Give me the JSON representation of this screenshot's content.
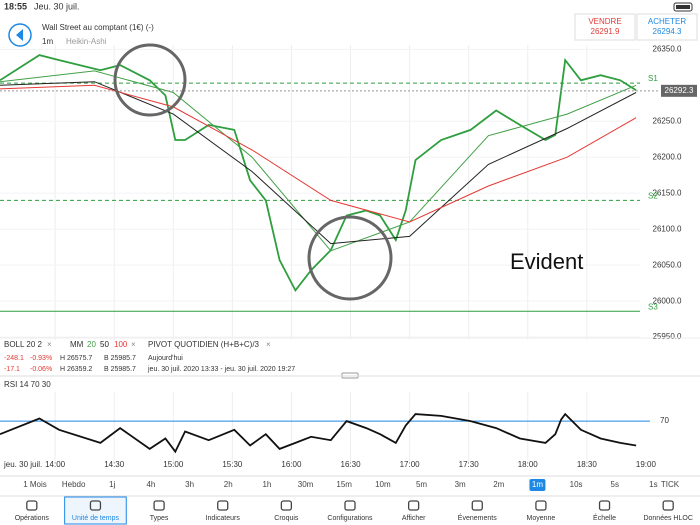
{
  "status": {
    "time": "18:55",
    "date": "Jeu. 30 juil."
  },
  "header": {
    "instrument": "Wall Street au comptant (1€) (-)",
    "timeframe": "1m",
    "chart_style": "Heikin-Ashi"
  },
  "quotes": {
    "sell_label": "VENDRE",
    "sell_price": 26291.9,
    "buy_label": "ACHETER",
    "buy_price": 26294.3
  },
  "chart_data": [
    {
      "type": "line",
      "annotation": "Evident",
      "current_price": 26292.3,
      "xlim": [
        812,
        1137
      ],
      "ylim": [
        25946,
        26356
      ],
      "yticks": [
        {
          "value": 25950,
          "label": "25950.0"
        },
        {
          "value": 26000,
          "label": "26000.0"
        },
        {
          "value": 26050,
          "label": "26050.0"
        },
        {
          "value": 26100,
          "label": "26100.0"
        },
        {
          "value": 26150,
          "label": "26150.0"
        },
        {
          "value": 26200,
          "label": "26200.0"
        },
        {
          "value": 26250,
          "label": "26250.0"
        },
        {
          "value": 26350,
          "label": "26350.0"
        }
      ],
      "pivots": [
        {
          "name": "S1",
          "value": 26303,
          "dashed": true
        },
        {
          "name": "S2",
          "value": 26140,
          "dashed": true
        },
        {
          "name": "S3",
          "value": 25986,
          "dashed": false
        }
      ],
      "series": [
        {
          "name": "price",
          "color": "#2e9e3e",
          "x": [
            812,
            832,
            842,
            863,
            873,
            888,
            896,
            901,
            906,
            918,
            931,
            939,
            947,
            954,
            962,
            970,
            980,
            988,
            998,
            1005,
            1013,
            1018,
            1023,
            1036,
            1051,
            1064,
            1076,
            1089,
            1094,
            1097,
            1099,
            1107,
            1117,
            1127,
            1135
          ],
          "values": [
            26307,
            26342,
            26335,
            26321,
            26328,
            26307,
            26286,
            26224,
            26224,
            26245,
            26238,
            26168,
            26140,
            26057,
            26015,
            26043,
            26071,
            26119,
            26126,
            26119,
            26085,
            26126,
            26196,
            26224,
            26238,
            26265,
            26245,
            26224,
            26231,
            26293,
            26335,
            26307,
            26314,
            26307,
            26293
          ]
        },
        {
          "name": "MM 20",
          "color": "#43a047",
          "x": [
            812,
            860,
            900,
            940,
            980,
            1020,
            1060,
            1100,
            1135
          ],
          "values": [
            26305,
            26320,
            26290,
            26200,
            26070,
            26110,
            26230,
            26260,
            26300
          ]
        },
        {
          "name": "MM 50",
          "color": "#222222",
          "x": [
            812,
            860,
            900,
            940,
            980,
            1020,
            1060,
            1100,
            1135
          ],
          "values": [
            26300,
            26305,
            26260,
            26180,
            26080,
            26090,
            26190,
            26240,
            26290
          ]
        },
        {
          "name": "MM 100",
          "color": "#e53935",
          "x": [
            812,
            860,
            900,
            940,
            980,
            1020,
            1060,
            1100,
            1135
          ],
          "values": [
            26295,
            26300,
            26270,
            26210,
            26140,
            26110,
            26160,
            26200,
            26255
          ]
        }
      ]
    },
    {
      "type": "line",
      "title": "RSI  14  70  30",
      "x_date_label": "jeu. 30 juil.",
      "xlim": [
        812,
        1137
      ],
      "ylim": [
        23,
        100
      ],
      "yticks": [
        70
      ],
      "xticks": [
        {
          "value": 840,
          "label": "14:00"
        },
        {
          "value": 870,
          "label": "14:30"
        },
        {
          "value": 900,
          "label": "15:00"
        },
        {
          "value": 930,
          "label": "15:30"
        },
        {
          "value": 960,
          "label": "16:00"
        },
        {
          "value": 990,
          "label": "16:30"
        },
        {
          "value": 1020,
          "label": "17:00"
        },
        {
          "value": 1050,
          "label": "17:30"
        },
        {
          "value": 1080,
          "label": "18:00"
        },
        {
          "value": 1110,
          "label": "18:30"
        },
        {
          "value": 1140,
          "label": "19:00"
        }
      ],
      "series": [
        {
          "name": "RSI",
          "color": "#111111",
          "x": [
            812,
            832,
            842,
            863,
            873,
            888,
            896,
            901,
            906,
            918,
            931,
            939,
            947,
            954,
            962,
            970,
            980,
            988,
            998,
            1005,
            1013,
            1018,
            1023,
            1036,
            1051,
            1064,
            1076,
            1089,
            1094,
            1097,
            1099,
            1107,
            1117,
            1127,
            1135
          ],
          "values": [
            55,
            73,
            60,
            45,
            62,
            38,
            50,
            35,
            58,
            48,
            60,
            42,
            55,
            38,
            45,
            52,
            48,
            70,
            62,
            55,
            45,
            65,
            78,
            76,
            70,
            62,
            50,
            45,
            55,
            72,
            78,
            60,
            50,
            45,
            42
          ]
        }
      ]
    }
  ],
  "legend": {
    "boll": "BOLL  20  2",
    "mm": "MM",
    "mm_params": [
      "20",
      "50",
      "100"
    ],
    "pivot": "PIVOT  QUOTIDIEN  (H+B+C)/3",
    "close": "×",
    "rows": [
      [
        "-248.1",
        "-0.93%",
        "H 26575.7",
        "B 25985.7",
        "Aujourd'hui"
      ],
      [
        "-17.1",
        "-0.06%",
        "H 26359.2",
        "B 25985.7",
        "jeu. 30 juil. 2020 13:33 - jeu. 30 juil. 2020 19:27"
      ]
    ]
  },
  "timeframes": {
    "items": [
      "1 Mois",
      "Hebdo",
      "1j",
      "4h",
      "3h",
      "2h",
      "1h",
      "30m",
      "15m",
      "10m",
      "5m",
      "3m",
      "2m",
      "1m",
      "10s",
      "5s",
      "1s",
      "TICK"
    ],
    "selected": 13
  },
  "toolbar": {
    "items": [
      "Opérations",
      "Unité de temps",
      "Types",
      "Indicateurs",
      "Croquis",
      "Configurations",
      "Afficher",
      "Évenements",
      "Moyenne",
      "Échelle",
      "Données HLOC"
    ],
    "selected": 1
  }
}
